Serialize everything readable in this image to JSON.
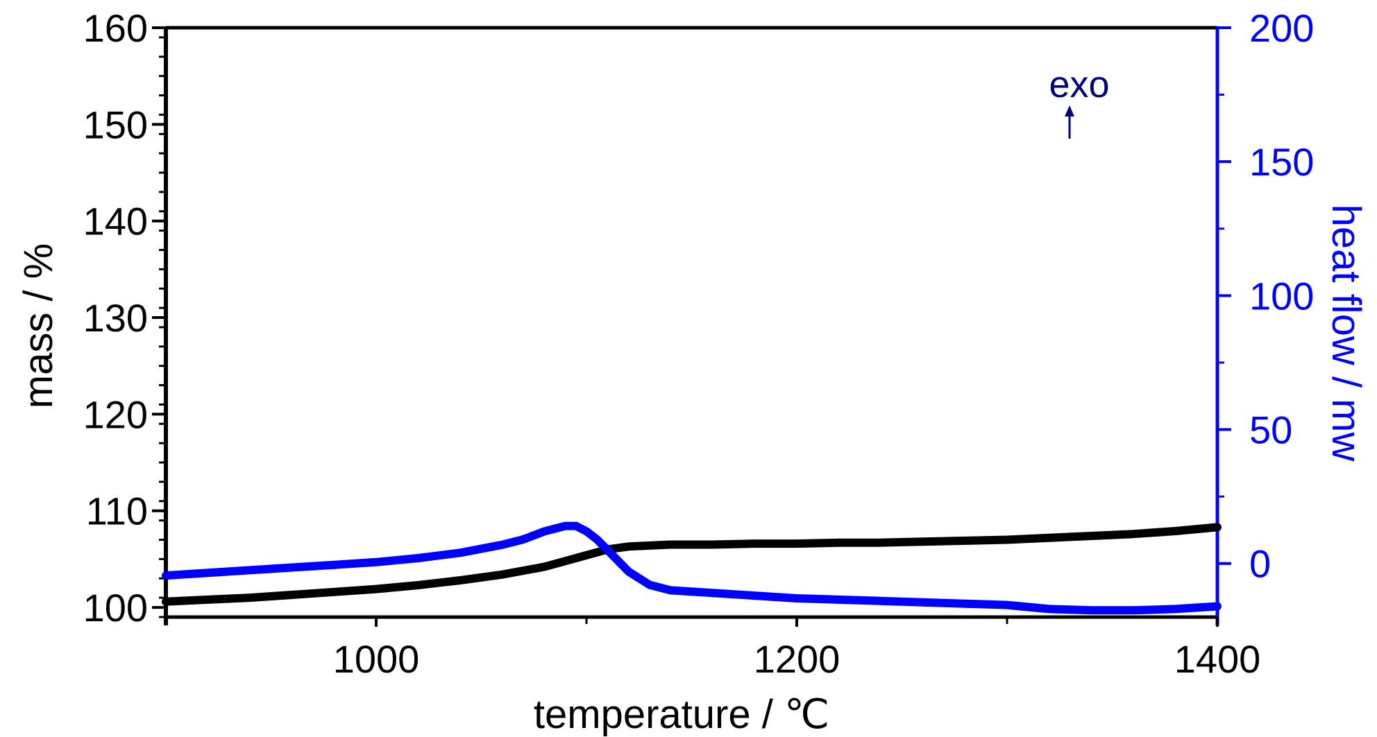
{
  "chart_data": {
    "type": "line",
    "title": "",
    "xlabel": "temperature / ℃",
    "ylabel_left": "mass / %",
    "ylabel_right": "heat flow / mw",
    "xlim": [
      900,
      1400
    ],
    "ylim_left": [
      99,
      160
    ],
    "ylim_right": [
      -20,
      200
    ],
    "x_ticks": [
      1000,
      1200,
      1400
    ],
    "y_left_ticks": [
      100,
      110,
      120,
      130,
      140,
      150,
      160
    ],
    "y_right_ticks": [
      0,
      50,
      100,
      150,
      200
    ],
    "annotation": "exo",
    "colors": {
      "mass": "#000000",
      "heat_flow": "#0000ff",
      "annotation": "#000080"
    },
    "series": [
      {
        "axis": "left",
        "x": [
          900,
          920,
          940,
          960,
          980,
          1000,
          1020,
          1040,
          1060,
          1080,
          1090,
          1100,
          1110,
          1120,
          1130,
          1140,
          1160,
          1180,
          1200,
          1220,
          1240,
          1260,
          1280,
          1300,
          1320,
          1340,
          1360,
          1380,
          1400
        ],
        "values": [
          100.6,
          100.8,
          101.0,
          101.3,
          101.6,
          101.9,
          102.3,
          102.8,
          103.4,
          104.2,
          104.8,
          105.4,
          106.0,
          106.3,
          106.4,
          106.5,
          106.5,
          106.6,
          106.6,
          106.7,
          106.7,
          106.8,
          106.9,
          107.0,
          107.2,
          107.4,
          107.6,
          107.9,
          108.3
        ]
      },
      {
        "axis": "right",
        "x": [
          900,
          920,
          940,
          960,
          980,
          1000,
          1020,
          1040,
          1060,
          1070,
          1080,
          1090,
          1095,
          1100,
          1105,
          1110,
          1120,
          1130,
          1140,
          1160,
          1180,
          1200,
          1220,
          1240,
          1260,
          1280,
          1300,
          1320,
          1340,
          1360,
          1380,
          1400
        ],
        "values": [
          -4.5,
          -3.5,
          -2.5,
          -1.5,
          -0.5,
          0.5,
          2,
          4,
          7,
          9,
          12,
          14,
          14,
          12,
          9,
          5,
          -3,
          -8,
          -10,
          -11,
          -12,
          -13,
          -13.5,
          -14,
          -14.5,
          -15,
          -15.5,
          -17,
          -17.5,
          -17.5,
          -17,
          -16
        ]
      }
    ]
  }
}
